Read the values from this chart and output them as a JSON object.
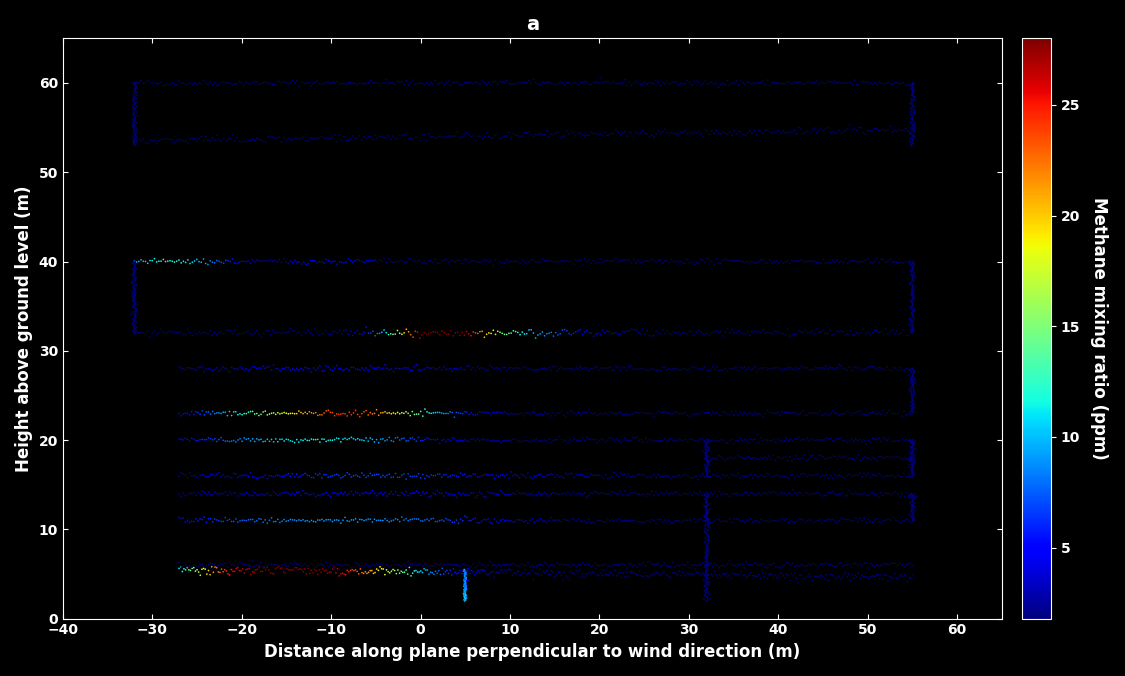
{
  "title": "a",
  "xlabel": "Distance along plane perpendicular to wind direction (m)",
  "ylabel": "Height above ground level (m)",
  "colorbar_label": "Methane mixing ratio (ppm)",
  "xlim": [
    -40,
    65
  ],
  "ylim": [
    0,
    65
  ],
  "xticks": [
    -40,
    -30,
    -20,
    -10,
    0,
    10,
    20,
    30,
    40,
    50,
    60
  ],
  "yticks": [
    0,
    10,
    20,
    30,
    40,
    50,
    60
  ],
  "cmap": "jet",
  "vmin": 1.8,
  "vmax": 28,
  "colorbar_ticks": [
    5,
    10,
    15,
    20,
    25
  ],
  "background_color": "#000000",
  "axes_color": "#ffffff",
  "title_fontsize": 14,
  "label_fontsize": 12,
  "tick_fontsize": 10,
  "dot_size": 1.5,
  "base_value": 1.9
}
